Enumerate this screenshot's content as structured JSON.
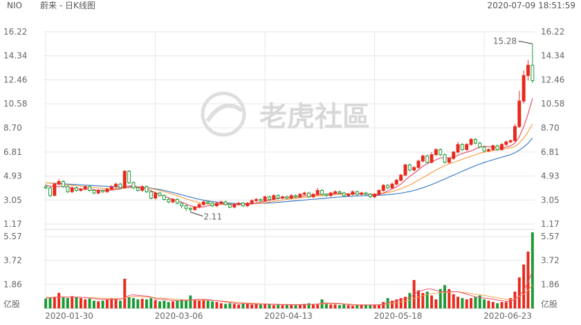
{
  "header": {
    "ticker": "NIO",
    "title": "蔚来 - 日K线图",
    "timestamp": "2020-07-09 18:51:59"
  },
  "watermark": {
    "text": "老虎社區"
  },
  "colors": {
    "up": "#e8291c",
    "down": "#1a9a35",
    "ma_red": "#e8506a",
    "ma_orange": "#f5a04a",
    "ma_blue": "#3f7fc6",
    "grid": "#e6e6e6",
    "text": "#666666"
  },
  "chart_data": [
    {
      "type": "candlestick",
      "y_ticks": [
        "16.22",
        "14.34",
        "12.46",
        "10.58",
        "8.70",
        "6.81",
        "4.93",
        "3.05",
        "1.17"
      ],
      "ylim": [
        1.17,
        16.22
      ],
      "x_ticks": [
        {
          "label": "2020-01-30",
          "index": 0
        },
        {
          "label": "2020-03-06",
          "index": 25
        },
        {
          "label": "2020-04-13",
          "index": 50
        },
        {
          "label": "2020-05-18",
          "index": 75
        },
        {
          "label": "2020-06-23",
          "index": 100
        }
      ],
      "annotations": [
        {
          "text": "15.28",
          "index": 111,
          "value": 15.28
        },
        {
          "text": "2.11",
          "index": 33,
          "value": 2.11
        }
      ],
      "candles": [
        [
          4.1,
          4.0,
          4.3,
          3.9
        ],
        [
          4.0,
          3.4,
          4.1,
          3.3
        ],
        [
          3.4,
          4.3,
          4.4,
          3.4
        ],
        [
          4.3,
          4.5,
          4.7,
          4.2
        ],
        [
          4.5,
          4.1,
          4.6,
          4.0
        ],
        [
          4.1,
          3.7,
          4.2,
          3.6
        ],
        [
          3.7,
          4.0,
          4.1,
          3.6
        ],
        [
          4.0,
          3.8,
          4.1,
          3.7
        ],
        [
          3.8,
          3.9,
          4.0,
          3.7
        ],
        [
          3.9,
          4.1,
          4.2,
          3.8
        ],
        [
          4.1,
          3.8,
          4.2,
          3.7
        ],
        [
          3.8,
          3.6,
          3.9,
          3.5
        ],
        [
          3.6,
          3.8,
          3.9,
          3.5
        ],
        [
          3.8,
          3.7,
          3.9,
          3.6
        ],
        [
          3.7,
          3.9,
          4.0,
          3.6
        ],
        [
          3.9,
          4.1,
          4.2,
          3.8
        ],
        [
          4.1,
          4.3,
          4.4,
          4.0
        ],
        [
          4.3,
          4.0,
          4.4,
          3.9
        ],
        [
          4.0,
          5.3,
          5.4,
          4.0
        ],
        [
          5.3,
          4.4,
          5.4,
          4.3
        ],
        [
          4.4,
          4.0,
          4.5,
          3.9
        ],
        [
          4.0,
          3.8,
          4.1,
          3.7
        ],
        [
          3.8,
          4.1,
          4.2,
          3.7
        ],
        [
          4.1,
          3.7,
          4.2,
          3.6
        ],
        [
          3.7,
          3.2,
          3.8,
          3.1
        ],
        [
          3.2,
          3.6,
          3.7,
          3.1
        ],
        [
          3.6,
          3.4,
          3.7,
          3.3
        ],
        [
          3.4,
          3.1,
          3.5,
          3.0
        ],
        [
          3.1,
          2.9,
          3.2,
          2.8
        ],
        [
          2.9,
          3.1,
          3.2,
          2.8
        ],
        [
          3.1,
          2.8,
          3.2,
          2.7
        ],
        [
          2.8,
          2.6,
          2.9,
          2.4
        ],
        [
          2.6,
          2.4,
          2.7,
          2.2
        ],
        [
          2.4,
          2.3,
          2.5,
          2.1
        ],
        [
          2.3,
          2.5,
          2.6,
          2.2
        ],
        [
          2.5,
          2.7,
          2.8,
          2.4
        ],
        [
          2.7,
          2.9,
          3.0,
          2.6
        ],
        [
          2.9,
          2.8,
          3.0,
          2.7
        ],
        [
          2.8,
          2.6,
          2.9,
          2.5
        ],
        [
          2.6,
          2.8,
          2.9,
          2.5
        ],
        [
          2.8,
          2.9,
          3.0,
          2.7
        ],
        [
          2.9,
          2.7,
          3.0,
          2.6
        ],
        [
          2.7,
          2.5,
          2.8,
          2.4
        ],
        [
          2.5,
          2.7,
          2.8,
          2.4
        ],
        [
          2.7,
          2.8,
          2.9,
          2.6
        ],
        [
          2.8,
          2.6,
          2.9,
          2.5
        ],
        [
          2.6,
          2.8,
          2.9,
          2.5
        ],
        [
          2.8,
          3.0,
          3.1,
          2.7
        ],
        [
          3.0,
          3.1,
          3.2,
          2.9
        ],
        [
          3.1,
          3.0,
          3.2,
          2.9
        ],
        [
          3.0,
          3.3,
          3.4,
          2.9
        ],
        [
          3.3,
          3.1,
          3.4,
          3.0
        ],
        [
          3.1,
          3.4,
          3.5,
          3.0
        ],
        [
          3.4,
          3.2,
          3.5,
          3.1
        ],
        [
          3.2,
          3.3,
          3.4,
          3.1
        ],
        [
          3.3,
          3.2,
          3.4,
          3.1
        ],
        [
          3.2,
          3.4,
          3.5,
          3.1
        ],
        [
          3.4,
          3.3,
          3.5,
          3.2
        ],
        [
          3.3,
          3.5,
          3.6,
          3.2
        ],
        [
          3.5,
          3.6,
          3.7,
          3.4
        ],
        [
          3.6,
          3.3,
          3.7,
          3.2
        ],
        [
          3.3,
          3.5,
          3.6,
          3.2
        ],
        [
          3.5,
          3.8,
          4.0,
          3.4
        ],
        [
          3.8,
          3.5,
          3.9,
          3.4
        ],
        [
          3.5,
          3.4,
          3.6,
          3.3
        ],
        [
          3.4,
          3.6,
          3.7,
          3.3
        ],
        [
          3.6,
          3.7,
          3.8,
          3.5
        ],
        [
          3.7,
          3.6,
          3.8,
          3.5
        ],
        [
          3.6,
          3.4,
          3.7,
          3.3
        ],
        [
          3.4,
          3.5,
          3.6,
          3.3
        ],
        [
          3.5,
          3.7,
          3.8,
          3.4
        ],
        [
          3.7,
          3.5,
          3.8,
          3.4
        ],
        [
          3.5,
          3.6,
          3.7,
          3.4
        ],
        [
          3.6,
          3.5,
          3.7,
          3.4
        ],
        [
          3.5,
          3.3,
          3.6,
          3.2
        ],
        [
          3.3,
          3.5,
          3.6,
          3.2
        ],
        [
          3.5,
          3.8,
          3.9,
          3.4
        ],
        [
          3.8,
          4.2,
          4.3,
          3.7
        ],
        [
          4.2,
          4.0,
          4.3,
          3.9
        ],
        [
          4.0,
          4.3,
          4.4,
          3.9
        ],
        [
          4.3,
          4.6,
          4.7,
          4.2
        ],
        [
          4.6,
          5.0,
          5.1,
          4.5
        ],
        [
          5.0,
          5.8,
          5.9,
          4.9
        ],
        [
          5.8,
          5.4,
          5.9,
          5.3
        ],
        [
          5.4,
          5.6,
          5.7,
          5.3
        ],
        [
          5.6,
          6.1,
          6.2,
          5.5
        ],
        [
          6.1,
          6.5,
          6.6,
          6.0
        ],
        [
          6.5,
          6.0,
          6.6,
          5.9
        ],
        [
          6.0,
          6.6,
          6.8,
          5.9
        ],
        [
          6.6,
          7.0,
          7.1,
          6.5
        ],
        [
          7.0,
          6.6,
          7.1,
          6.5
        ],
        [
          6.6,
          6.0,
          6.7,
          5.9
        ],
        [
          6.0,
          6.3,
          6.4,
          5.9
        ],
        [
          6.3,
          6.8,
          6.9,
          6.2
        ],
        [
          6.8,
          7.4,
          7.6,
          6.7
        ],
        [
          7.4,
          7.0,
          7.5,
          6.9
        ],
        [
          7.0,
          7.4,
          7.5,
          6.9
        ],
        [
          7.4,
          7.8,
          7.9,
          7.3
        ],
        [
          7.8,
          7.5,
          7.9,
          7.4
        ],
        [
          7.5,
          7.2,
          7.6,
          7.1
        ],
        [
          7.2,
          6.9,
          7.3,
          6.8
        ],
        [
          6.9,
          7.0,
          7.1,
          6.8
        ],
        [
          7.0,
          7.3,
          7.4,
          6.9
        ],
        [
          7.3,
          7.0,
          7.4,
          6.9
        ],
        [
          7.0,
          7.4,
          7.5,
          6.9
        ],
        [
          7.4,
          7.6,
          7.7,
          7.3
        ],
        [
          7.6,
          7.7,
          7.8,
          7.5
        ],
        [
          7.7,
          8.8,
          9.0,
          7.6
        ],
        [
          8.8,
          10.8,
          11.6,
          8.7
        ],
        [
          10.8,
          12.8,
          13.2,
          10.6
        ],
        [
          12.8,
          13.6,
          14.0,
          12.4
        ],
        [
          13.6,
          12.4,
          15.28,
          12.2
        ]
      ],
      "ma_red": [
        4.2,
        4.15,
        4.1,
        4.1,
        4.12,
        4.05,
        4.0,
        3.95,
        3.92,
        3.92,
        3.9,
        3.86,
        3.82,
        3.8,
        3.8,
        3.82,
        3.88,
        3.92,
        4.05,
        4.15,
        4.15,
        4.08,
        4.0,
        3.92,
        3.78,
        3.62,
        3.5,
        3.36,
        3.22,
        3.12,
        3.0,
        2.88,
        2.74,
        2.6,
        2.5,
        2.48,
        2.52,
        2.6,
        2.66,
        2.7,
        2.75,
        2.77,
        2.73,
        2.7,
        2.7,
        2.7,
        2.7,
        2.75,
        2.82,
        2.88,
        2.95,
        3.02,
        3.1,
        3.18,
        3.22,
        3.25,
        3.27,
        3.28,
        3.3,
        3.38,
        3.4,
        3.4,
        3.46,
        3.5,
        3.5,
        3.52,
        3.56,
        3.58,
        3.56,
        3.52,
        3.52,
        3.54,
        3.54,
        3.54,
        3.48,
        3.44,
        3.48,
        3.6,
        3.75,
        3.92,
        4.08,
        4.3,
        4.6,
        4.9,
        5.15,
        5.4,
        5.7,
        5.9,
        6.05,
        6.2,
        6.35,
        6.35,
        6.35,
        6.4,
        6.55,
        6.7,
        6.8,
        6.9,
        7.05,
        7.2,
        7.25,
        7.22,
        7.2,
        7.15,
        7.15,
        7.2,
        7.3,
        7.5,
        8.0,
        8.8,
        9.8,
        11.0
      ],
      "ma_orange": [
        4.4,
        4.37,
        4.33,
        4.3,
        4.27,
        4.23,
        4.2,
        4.17,
        4.13,
        4.1,
        4.07,
        4.03,
        4.0,
        3.97,
        3.95,
        3.94,
        3.95,
        3.96,
        3.98,
        4.01,
        4.04,
        4.05,
        4.03,
        4.0,
        3.94,
        3.88,
        3.8,
        3.71,
        3.6,
        3.5,
        3.39,
        3.27,
        3.15,
        3.03,
        2.92,
        2.84,
        2.78,
        2.75,
        2.73,
        2.72,
        2.71,
        2.71,
        2.7,
        2.7,
        2.7,
        2.71,
        2.72,
        2.74,
        2.77,
        2.8,
        2.84,
        2.89,
        2.94,
        3.0,
        3.05,
        3.1,
        3.14,
        3.18,
        3.22,
        3.26,
        3.3,
        3.33,
        3.36,
        3.39,
        3.42,
        3.45,
        3.47,
        3.49,
        3.5,
        3.51,
        3.52,
        3.53,
        3.53,
        3.53,
        3.52,
        3.51,
        3.52,
        3.56,
        3.63,
        3.71,
        3.81,
        3.93,
        4.07,
        4.23,
        4.41,
        4.6,
        4.8,
        5.0,
        5.2,
        5.4,
        5.58,
        5.74,
        5.88,
        6.0,
        6.12,
        6.24,
        6.36,
        6.48,
        6.6,
        6.71,
        6.8,
        6.87,
        6.93,
        6.98,
        7.02,
        7.07,
        7.13,
        7.25,
        7.5,
        7.9,
        8.4,
        9.0
      ],
      "ma_blue": [
        4.4,
        4.38,
        4.36,
        4.34,
        4.32,
        4.3,
        4.28,
        4.26,
        4.24,
        4.22,
        4.2,
        4.18,
        4.16,
        4.14,
        4.12,
        4.1,
        4.09,
        4.08,
        4.08,
        4.08,
        4.08,
        4.07,
        4.05,
        4.02,
        3.98,
        3.93,
        3.87,
        3.8,
        3.72,
        3.64,
        3.55,
        3.46,
        3.37,
        3.28,
        3.19,
        3.11,
        3.04,
        2.98,
        2.93,
        2.89,
        2.86,
        2.83,
        2.81,
        2.79,
        2.78,
        2.77,
        2.77,
        2.77,
        2.78,
        2.79,
        2.8,
        2.82,
        2.84,
        2.87,
        2.9,
        2.93,
        2.96,
        2.99,
        3.02,
        3.05,
        3.08,
        3.11,
        3.14,
        3.17,
        3.2,
        3.23,
        3.26,
        3.29,
        3.31,
        3.33,
        3.35,
        3.37,
        3.38,
        3.39,
        3.4,
        3.41,
        3.42,
        3.44,
        3.47,
        3.5,
        3.54,
        3.59,
        3.65,
        3.72,
        3.8,
        3.9,
        4.01,
        4.13,
        4.26,
        4.4,
        4.55,
        4.7,
        4.85,
        5.0,
        5.15,
        5.3,
        5.45,
        5.6,
        5.74,
        5.87,
        5.99,
        6.1,
        6.2,
        6.3,
        6.4,
        6.5,
        6.6,
        6.75,
        6.95,
        7.2,
        7.5,
        7.9
      ]
    },
    {
      "type": "bar",
      "y_ticks": [
        "5.57",
        "3.72",
        "1.86",
        "亿股"
      ],
      "ylim": [
        0,
        5.57
      ],
      "unit": "亿股",
      "volumes": [
        0.75,
        0.8,
        0.9,
        1.2,
        0.85,
        0.8,
        0.95,
        0.9,
        0.8,
        0.7,
        0.75,
        0.6,
        0.55,
        0.6,
        0.7,
        0.8,
        0.7,
        0.6,
        2.3,
        0.9,
        0.8,
        0.7,
        0.75,
        0.7,
        0.8,
        0.65,
        0.55,
        0.6,
        0.5,
        0.55,
        0.6,
        0.7,
        0.6,
        1.0,
        0.7,
        0.6,
        0.65,
        0.6,
        0.55,
        0.5,
        0.4,
        0.35,
        0.4,
        0.35,
        0.3,
        0.4,
        0.35,
        0.3,
        0.35,
        0.3,
        0.35,
        0.3,
        0.25,
        0.3,
        0.25,
        0.3,
        0.3,
        0.25,
        0.3,
        0.35,
        0.4,
        0.3,
        0.35,
        0.7,
        0.4,
        0.3,
        0.3,
        0.25,
        0.3,
        0.25,
        0.2,
        0.25,
        0.3,
        0.25,
        0.3,
        0.25,
        0.3,
        0.5,
        0.8,
        0.6,
        0.7,
        0.8,
        0.9,
        1.2,
        2.2,
        1.4,
        1.2,
        1.3,
        1.0,
        0.7,
        1.5,
        1.8,
        1.5,
        1.1,
        0.9,
        0.8,
        0.7,
        0.8,
        0.9,
        1.0,
        0.7,
        0.6,
        0.5,
        0.4,
        0.5,
        0.5,
        0.8,
        1.3,
        2.4,
        3.4,
        4.4,
        6.0
      ],
      "ma_red": [
        0.8,
        0.82,
        0.85,
        0.9,
        0.9,
        0.88,
        0.87,
        0.88,
        0.86,
        0.84,
        0.8,
        0.76,
        0.72,
        0.7,
        0.68,
        0.7,
        0.72,
        0.7,
        0.85,
        1.0,
        1.05,
        1.0,
        0.98,
        0.95,
        0.9,
        0.75,
        0.72,
        0.7,
        0.65,
        0.62,
        0.6,
        0.6,
        0.6,
        0.65,
        0.68,
        0.7,
        0.7,
        0.68,
        0.64,
        0.6,
        0.55,
        0.5,
        0.46,
        0.42,
        0.38,
        0.37,
        0.36,
        0.35,
        0.34,
        0.33,
        0.33,
        0.32,
        0.31,
        0.3,
        0.29,
        0.29,
        0.29,
        0.28,
        0.29,
        0.3,
        0.31,
        0.32,
        0.34,
        0.4,
        0.42,
        0.42,
        0.4,
        0.38,
        0.35,
        0.3,
        0.27,
        0.26,
        0.26,
        0.26,
        0.26,
        0.27,
        0.28,
        0.32,
        0.42,
        0.5,
        0.6,
        0.7,
        0.76,
        0.84,
        1.1,
        1.3,
        1.4,
        1.5,
        1.5,
        1.4,
        1.3,
        1.3,
        1.3,
        1.3,
        1.3,
        1.2,
        1.1,
        1.0,
        0.9,
        0.84,
        0.8,
        0.76,
        0.72,
        0.64,
        0.6,
        0.56,
        0.56,
        0.68,
        0.98,
        1.4,
        2.0,
        2.9
      ],
      "ma_orange": [
        0.85,
        0.85,
        0.86,
        0.88,
        0.88,
        0.87,
        0.87,
        0.87,
        0.86,
        0.85,
        0.84,
        0.82,
        0.8,
        0.78,
        0.76,
        0.76,
        0.76,
        0.75,
        0.82,
        0.88,
        0.92,
        0.92,
        0.9,
        0.88,
        0.86,
        0.82,
        0.8,
        0.78,
        0.76,
        0.73,
        0.7,
        0.68,
        0.66,
        0.66,
        0.66,
        0.66,
        0.65,
        0.64,
        0.62,
        0.6,
        0.58,
        0.55,
        0.52,
        0.49,
        0.46,
        0.44,
        0.42,
        0.4,
        0.38,
        0.36,
        0.35,
        0.34,
        0.33,
        0.32,
        0.31,
        0.31,
        0.3,
        0.3,
        0.3,
        0.3,
        0.31,
        0.31,
        0.32,
        0.35,
        0.36,
        0.36,
        0.36,
        0.35,
        0.34,
        0.33,
        0.31,
        0.29,
        0.28,
        0.28,
        0.28,
        0.28,
        0.28,
        0.3,
        0.34,
        0.38,
        0.44,
        0.5,
        0.56,
        0.62,
        0.76,
        0.88,
        0.98,
        1.08,
        1.14,
        1.18,
        1.2,
        1.22,
        1.26,
        1.3,
        1.28,
        1.24,
        1.2,
        1.15,
        1.1,
        1.06,
        1.0,
        0.94,
        0.88,
        0.82,
        0.76,
        0.72,
        0.7,
        0.74,
        0.88,
        1.1,
        1.4,
        1.85
      ]
    }
  ]
}
